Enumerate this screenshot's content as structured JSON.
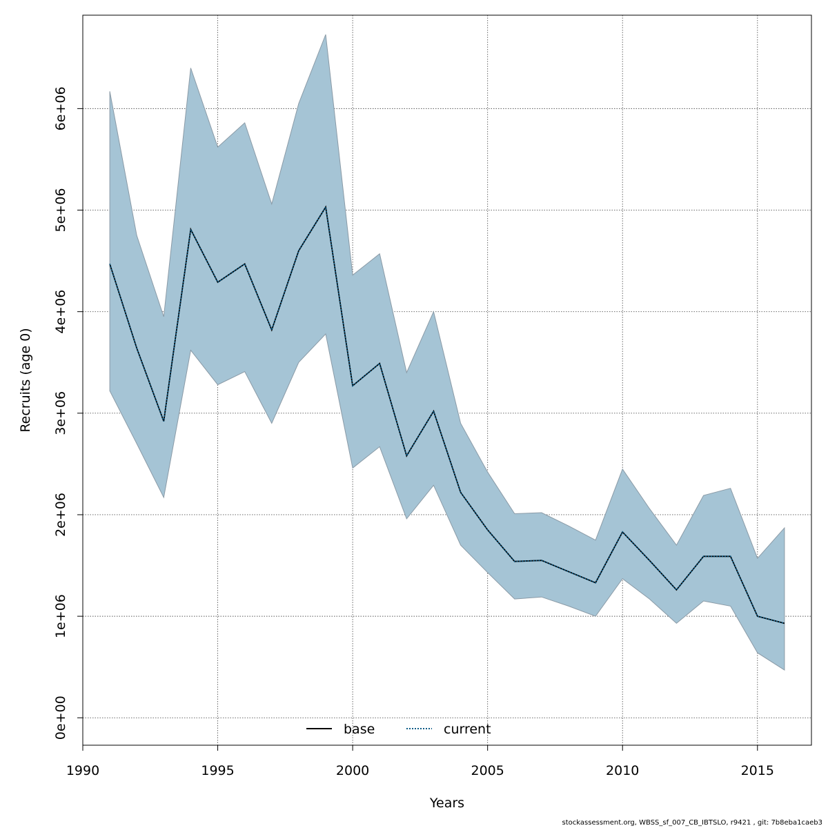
{
  "chart_data": {
    "type": "area",
    "xlabel": "Years",
    "ylabel": "Recruits (age 0)",
    "xlim": [
      1990,
      2017
    ],
    "ylim": [
      -270000,
      6920000
    ],
    "x_ticks": [
      1990,
      1995,
      2000,
      2005,
      2010,
      2015
    ],
    "y_ticks": [
      0,
      1000000,
      2000000,
      3000000,
      4000000,
      5000000,
      6000000
    ],
    "y_tick_labels": [
      "0e+00",
      "1e+06",
      "2e+06",
      "3e+06",
      "4e+06",
      "5e+06",
      "6e+06"
    ],
    "grid": true,
    "legend_position": "bottom-center",
    "x": [
      1991,
      1992,
      1993,
      1994,
      1995,
      1996,
      1997,
      1998,
      1999,
      2000,
      2001,
      2002,
      2003,
      2004,
      2005,
      2006,
      2007,
      2008,
      2009,
      2010,
      2011,
      2012,
      2013,
      2014,
      2015,
      2016
    ],
    "band": {
      "upper": [
        6170000,
        4750000,
        3950000,
        6400000,
        5620000,
        5860000,
        5060000,
        6050000,
        6730000,
        4360000,
        4570000,
        3400000,
        4000000,
        2900000,
        2420000,
        2010000,
        2020000,
        1890000,
        1750000,
        2450000,
        2060000,
        1700000,
        2190000,
        2260000,
        1570000,
        1870000
      ],
      "lower": [
        3220000,
        2700000,
        2170000,
        3620000,
        3280000,
        3410000,
        2900000,
        3500000,
        3780000,
        2460000,
        2670000,
        1960000,
        2290000,
        1700000,
        1430000,
        1170000,
        1190000,
        1100000,
        1000000,
        1370000,
        1170000,
        930000,
        1150000,
        1100000,
        640000,
        470000
      ],
      "color": "#a5c4d5",
      "edge_color": "#8a9aa6"
    },
    "series": [
      {
        "name": "base",
        "values": [
          4470000,
          3640000,
          2920000,
          4810000,
          4290000,
          4470000,
          3820000,
          4600000,
          5030000,
          3270000,
          3490000,
          2580000,
          3020000,
          2220000,
          1850000,
          1540000,
          1550000,
          1440000,
          1330000,
          1830000,
          1550000,
          1260000,
          1590000,
          1590000,
          1000000,
          930000
        ],
        "color": "#000000",
        "dash": "solid"
      },
      {
        "name": "current",
        "values": [
          4470000,
          3640000,
          2920000,
          4810000,
          4290000,
          4470000,
          3820000,
          4600000,
          5030000,
          3270000,
          3490000,
          2580000,
          3020000,
          2220000,
          1850000,
          1540000,
          1550000,
          1440000,
          1330000,
          1830000,
          1550000,
          1260000,
          1590000,
          1590000,
          1000000,
          930000
        ],
        "color": "#0b5a86",
        "dash": "dotted"
      }
    ]
  },
  "footer_text": "stockassessment.org, WBSS_sf_007_CB_IBTSLO, r9421 , git: 7b8eba1caeb3"
}
